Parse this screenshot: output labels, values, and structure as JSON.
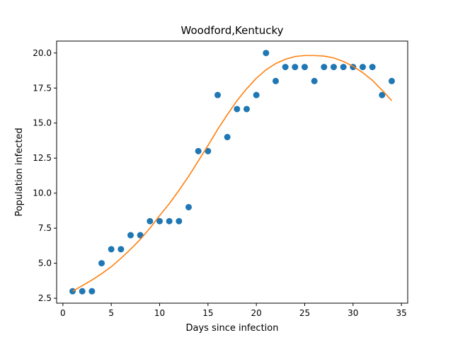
{
  "chart_data": {
    "type": "scatter",
    "title": "Woodford,Kentucky",
    "xlabel": "Days since infection",
    "ylabel": "Population infected",
    "xlim": [
      -0.65,
      35.65
    ],
    "ylim": [
      2.15,
      20.85
    ],
    "xticks": [
      0,
      5,
      10,
      15,
      20,
      25,
      30,
      35
    ],
    "xtick_labels": [
      "0",
      "5",
      "10",
      "15",
      "20",
      "25",
      "30",
      "35"
    ],
    "yticks": [
      2.5,
      5.0,
      7.5,
      10.0,
      12.5,
      15.0,
      17.5,
      20.0
    ],
    "ytick_labels": [
      "2.5",
      "5.0",
      "7.5",
      "10.0",
      "12.5",
      "15.0",
      "17.5",
      "20.0"
    ],
    "grid": false,
    "legend": "none",
    "series": [
      {
        "kind": "scatter",
        "color": "#1f77b4",
        "x": [
          1,
          2,
          3,
          4,
          5,
          6,
          7,
          8,
          9,
          10,
          11,
          12,
          13,
          14,
          15,
          16,
          17,
          18,
          19,
          20,
          21,
          22,
          23,
          24,
          25,
          26,
          27,
          28,
          29,
          30,
          31,
          32,
          33,
          34
        ],
        "y": [
          3,
          3,
          3,
          5,
          6,
          6,
          7,
          7,
          8,
          8,
          8,
          8,
          9,
          13,
          13,
          17,
          14,
          16,
          16,
          17,
          20,
          18,
          19,
          19,
          19,
          18,
          19,
          19,
          19,
          19,
          19,
          19,
          17,
          18
        ]
      },
      {
        "kind": "line",
        "color": "#ff7f0e",
        "x": [
          1,
          2,
          3,
          4,
          5,
          6,
          7,
          8,
          9,
          10,
          11,
          12,
          13,
          14,
          15,
          16,
          17,
          18,
          19,
          20,
          21,
          22,
          23,
          24,
          25,
          26,
          27,
          28,
          29,
          30,
          31,
          32,
          33,
          34
        ],
        "y": [
          3.0,
          3.4,
          3.8,
          4.25,
          4.75,
          5.35,
          6.0,
          6.7,
          7.5,
          8.4,
          9.25,
          10.2,
          11.2,
          12.3,
          13.4,
          14.55,
          15.6,
          16.6,
          17.45,
          18.2,
          18.8,
          19.25,
          19.55,
          19.75,
          19.82,
          19.82,
          19.78,
          19.65,
          19.4,
          19.05,
          18.6,
          18.05,
          17.35,
          16.6
        ]
      }
    ]
  }
}
